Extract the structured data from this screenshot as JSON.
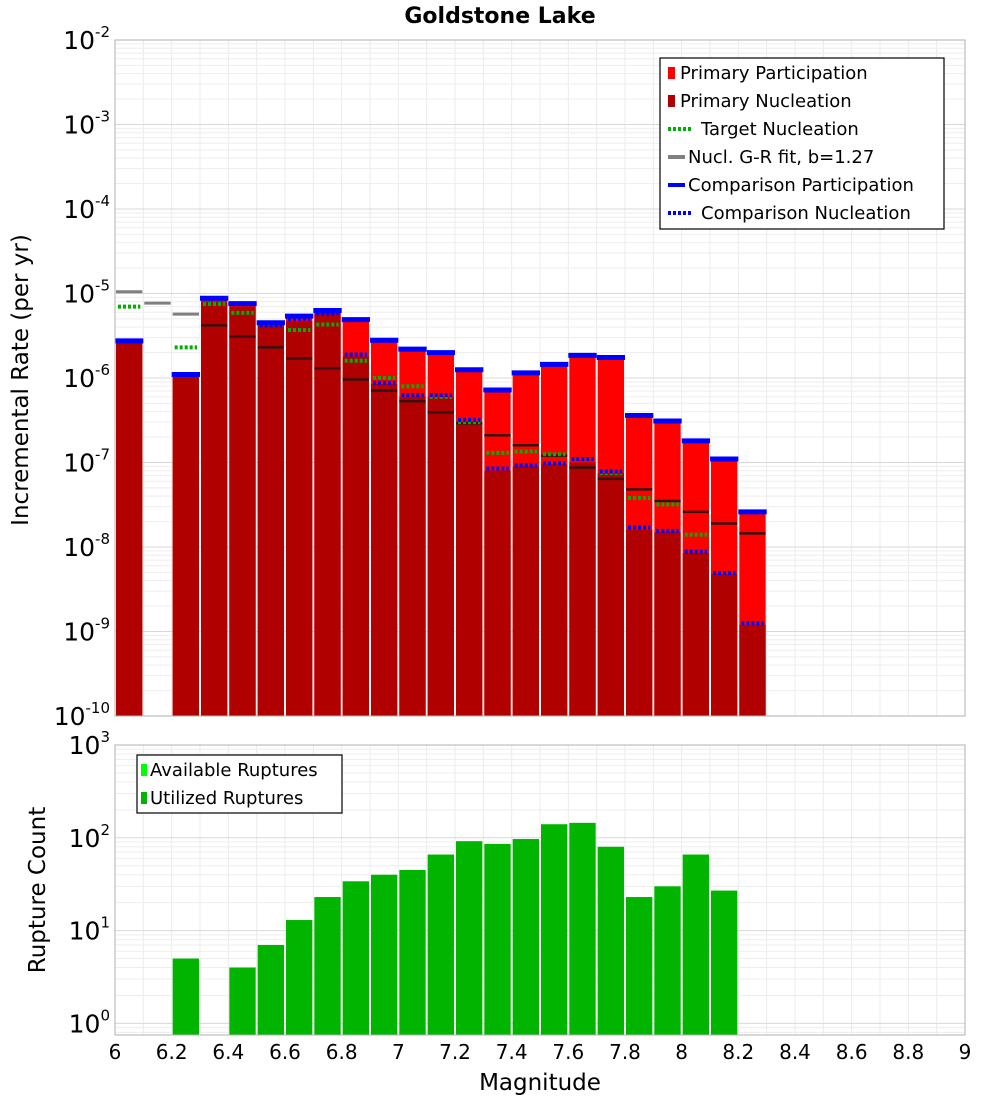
{
  "chart_data": [
    {
      "type": "bar",
      "title": "Goldstone Lake",
      "xlabel": "",
      "ylabel": "Incremental Rate (per yr)",
      "y_scale": "log",
      "ylim": [
        1e-10,
        0.01
      ],
      "y_tick_bases": [
        "10",
        "10",
        "10",
        "10",
        "10",
        "10",
        "10",
        "10",
        "10"
      ],
      "y_tick_exps": [
        "-10",
        "-9",
        "-8",
        "-7",
        "-6",
        "-5",
        "-4",
        "-3",
        "-2"
      ],
      "xlim": [
        6.0,
        9.0
      ],
      "bin_width": 0.1,
      "grid": true,
      "legend_position": "top-right",
      "legend": [
        "Primary Participation",
        "Primary Nucleation",
        "Target Nucleation",
        "Nucl. G-R fit, b=1.27",
        "Comparison Participation",
        "Comparison Nucleation"
      ],
      "colors": {
        "primary_participation": "#ff0000",
        "primary_nucleation": "#b00000",
        "target_nucleation": "#00b000",
        "gr_fit": "#808080",
        "comparison_participation": "#0000ff",
        "comparison_nucleation": "#0000ff"
      },
      "series": [
        {
          "name": "Primary Participation",
          "x": [
            6.05,
            6.25,
            6.35,
            6.45,
            6.55,
            6.65,
            6.75,
            6.85,
            6.95,
            7.05,
            7.15,
            7.25,
            7.35,
            7.45,
            7.55,
            7.65,
            7.75,
            7.85,
            7.95,
            8.05,
            8.15,
            8.25
          ],
          "values": [
            2.7e-06,
            1.1e-06,
            8.5e-06,
            7.3e-06,
            4.4e-06,
            5.2e-06,
            6.1e-06,
            4.7e-06,
            2.7e-06,
            2.1e-06,
            1.95e-06,
            1.2e-06,
            7e-07,
            1.1e-06,
            1.4e-06,
            1.75e-06,
            1.7e-06,
            3.5e-07,
            3e-07,
            1.75e-07,
            1.05e-07,
            2.5e-08
          ]
        },
        {
          "name": "Primary Nucleation",
          "x": [
            6.05,
            6.25,
            6.35,
            6.45,
            6.55,
            6.65,
            6.75,
            6.85,
            6.95,
            7.05,
            7.15,
            7.25,
            7.35,
            7.45,
            7.55,
            7.65,
            7.75,
            7.85,
            7.95,
            8.05,
            8.15,
            8.25
          ],
          "values": [
            2.7e-06,
            1.05e-06,
            8e-06,
            7e-06,
            4.2e-06,
            4.7e-06,
            6e-06,
            1.8e-06,
            8.5e-07,
            6e-07,
            6e-07,
            3e-07,
            8e-08,
            9e-08,
            9.5e-08,
            1e-07,
            7.5e-08,
            1.6e-08,
            1.5e-08,
            8.5e-09,
            4.8e-09,
            1.2e-09
          ]
        },
        {
          "name": "Target Nucleation",
          "x": [
            6.05,
            6.25,
            6.35,
            6.45,
            6.55,
            6.65,
            6.75,
            6.85,
            6.95,
            7.05,
            7.15,
            7.25,
            7.35,
            7.45,
            7.55,
            7.65,
            7.75,
            7.85,
            7.95,
            8.05
          ],
          "values": [
            7e-06,
            2.3e-06,
            7.5e-06,
            5.9e-06,
            4.3e-06,
            3.7e-06,
            4.3e-06,
            1.6e-06,
            1e-06,
            8e-07,
            6e-07,
            3e-07,
            1.3e-07,
            1.35e-07,
            1.25e-07,
            1.1e-07,
            7.5e-08,
            3.8e-08,
            3.2e-08,
            1.4e-08
          ]
        },
        {
          "name": "Nucl. G-R fit, b=1.27",
          "x": [
            6.05,
            6.15,
            6.25,
            6.35,
            6.45,
            6.55,
            6.65,
            6.75,
            6.85,
            6.95,
            7.05,
            7.15,
            7.25,
            7.35,
            7.45,
            7.55,
            7.65,
            7.75,
            7.85,
            7.95,
            8.05,
            8.15,
            8.25
          ],
          "values": [
            1.05e-05,
            7.7e-06,
            5.7e-06,
            4.2e-06,
            3.1e-06,
            2.3e-06,
            1.7e-06,
            1.3e-06,
            9.6e-07,
            7.1e-07,
            5.3e-07,
            3.9e-07,
            2.9e-07,
            2.1e-07,
            1.6e-07,
            1.2e-07,
            8.7e-08,
            6.4e-08,
            4.8e-08,
            3.5e-08,
            2.6e-08,
            1.9e-08,
            1.45e-08
          ]
        },
        {
          "name": "Comparison Participation",
          "x": [
            6.05,
            6.25,
            6.35,
            6.45,
            6.55,
            6.65,
            6.75,
            6.85,
            6.95,
            7.05,
            7.15,
            7.25,
            7.35,
            7.45,
            7.55,
            7.65,
            7.75,
            7.85,
            7.95,
            8.05,
            8.15,
            8.25
          ],
          "values": [
            2.75e-06,
            1.1e-06,
            8.8e-06,
            7.6e-06,
            4.5e-06,
            5.4e-06,
            6.3e-06,
            4.9e-06,
            2.8e-06,
            2.2e-06,
            2e-06,
            1.25e-06,
            7.2e-07,
            1.15e-06,
            1.45e-06,
            1.85e-06,
            1.75e-06,
            3.6e-07,
            3.1e-07,
            1.8e-07,
            1.1e-07,
            2.6e-08
          ]
        },
        {
          "name": "Comparison Nucleation",
          "x": [
            6.55,
            6.65,
            6.75,
            6.85,
            6.95,
            7.05,
            7.15,
            7.25,
            7.35,
            7.45,
            7.55,
            7.65,
            7.75,
            7.85,
            7.95,
            8.05,
            8.15,
            8.25
          ],
          "values": [
            4.2e-06,
            5e-06,
            5.8e-06,
            1.9e-06,
            8.8e-07,
            6.3e-07,
            6.3e-07,
            3.2e-07,
            8.5e-08,
            9.2e-08,
            9.8e-08,
            1.1e-07,
            7.8e-08,
            1.7e-08,
            1.55e-08,
            8.8e-09,
            4.9e-09,
            1.25e-09
          ]
        }
      ]
    },
    {
      "type": "bar",
      "title": "",
      "xlabel": "Magnitude",
      "ylabel": "Rupture Count",
      "y_scale": "log",
      "ylim": [
        0.75,
        1000
      ],
      "y_tick_bases": [
        "10",
        "10",
        "10",
        "10"
      ],
      "y_tick_exps": [
        "0",
        "1",
        "2",
        "3"
      ],
      "xlim": [
        6.0,
        9.0
      ],
      "x_ticks": [
        "6",
        "6.2",
        "6.4",
        "6.6",
        "6.8",
        "7",
        "7.2",
        "7.4",
        "7.6",
        "7.8",
        "8",
        "8.2",
        "8.4",
        "8.6",
        "8.8",
        "9"
      ],
      "bin_width": 0.1,
      "grid": true,
      "legend_position": "top-left",
      "legend": [
        "Available Ruptures",
        "Utilized Ruptures"
      ],
      "colors": {
        "available": "#00ff00",
        "utilized": "#00b400"
      },
      "series": [
        {
          "name": "Utilized Ruptures",
          "x": [
            6.25,
            6.45,
            6.55,
            6.65,
            6.75,
            6.85,
            6.95,
            7.05,
            7.15,
            7.25,
            7.35,
            7.45,
            7.55,
            7.65,
            7.75,
            7.85,
            7.95,
            8.05,
            8.15
          ],
          "values": [
            5,
            4,
            7,
            13,
            23,
            34,
            40,
            45,
            66,
            92,
            86,
            97,
            140,
            145,
            80,
            23,
            30,
            66,
            27
          ]
        }
      ]
    }
  ]
}
